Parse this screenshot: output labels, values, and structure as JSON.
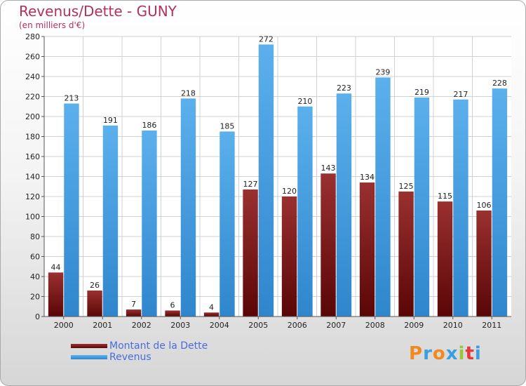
{
  "chart_data": {
    "type": "bar",
    "title": "Revenus/Dette - GUNY",
    "subtitle": "(en milliers d'€)",
    "categories": [
      "2000",
      "2001",
      "2002",
      "2003",
      "2004",
      "2005",
      "2006",
      "2007",
      "2008",
      "2009",
      "2010",
      "2011"
    ],
    "series": [
      {
        "name": "Montant de la Dette",
        "color": "#7a1a1a",
        "values": [
          44,
          26,
          7,
          6,
          4,
          127,
          120,
          143,
          134,
          125,
          115,
          106
        ]
      },
      {
        "name": "Revenus",
        "color": "#4ea6e6",
        "values": [
          213,
          191,
          186,
          218,
          185,
          272,
          210,
          223,
          239,
          219,
          217,
          228
        ]
      }
    ],
    "ylim": [
      0,
      280
    ],
    "yticks": [
      0,
      20,
      40,
      60,
      80,
      100,
      120,
      140,
      160,
      180,
      200,
      220,
      240,
      260,
      280
    ],
    "grid": true,
    "legend_position": "bottom-left"
  },
  "logo": {
    "letters": [
      "P",
      "r",
      "o",
      "x",
      "i",
      "t",
      "i"
    ],
    "colors": [
      "#f08a1e",
      "#3a9ee0",
      "#f08a1e",
      "#3a9ee0",
      "#9bc43a",
      "#e23a3a",
      "#3a9ee0"
    ]
  }
}
